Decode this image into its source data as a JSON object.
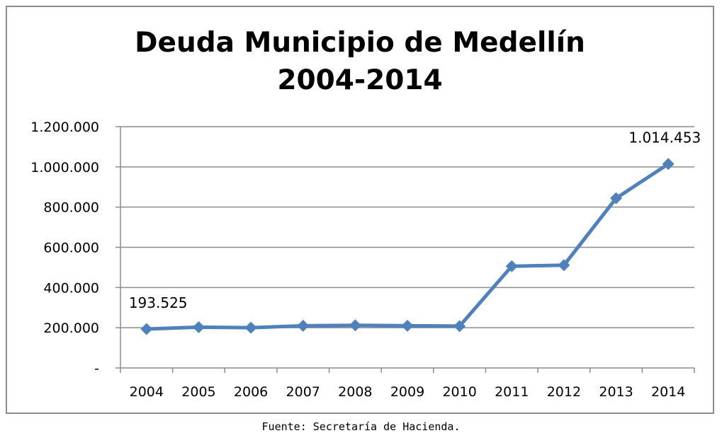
{
  "chart_data": {
    "type": "line",
    "title_lines": [
      "Deuda Municipio de Medellín",
      "2004-2014"
    ],
    "categories": [
      "2004",
      "2005",
      "2006",
      "2007",
      "2008",
      "2009",
      "2010",
      "2011",
      "2012",
      "2013",
      "2014"
    ],
    "series": [
      {
        "values": [
          193525,
          203000,
          200000,
          210000,
          212000,
          210000,
          208000,
          506000,
          511000,
          844000,
          1014453
        ],
        "color": "#4f81bd",
        "marker": "diamond"
      }
    ],
    "y_ticks": [
      0,
      200000,
      400000,
      600000,
      800000,
      1000000,
      1200000
    ],
    "y_tick_labels": [
      "-",
      "200.000",
      "400.000",
      "600.000",
      "800.000",
      "1.000.000",
      "1.200.000"
    ],
    "ylim": [
      0,
      1200000
    ],
    "grid": "horizontal",
    "legend": "none",
    "data_labels": [
      {
        "index": 0,
        "text": "193.525"
      },
      {
        "index": 10,
        "text": "1.014.453"
      }
    ],
    "xlabel": "",
    "ylabel": ""
  },
  "source": "Fuente: Secretaría de Hacienda."
}
